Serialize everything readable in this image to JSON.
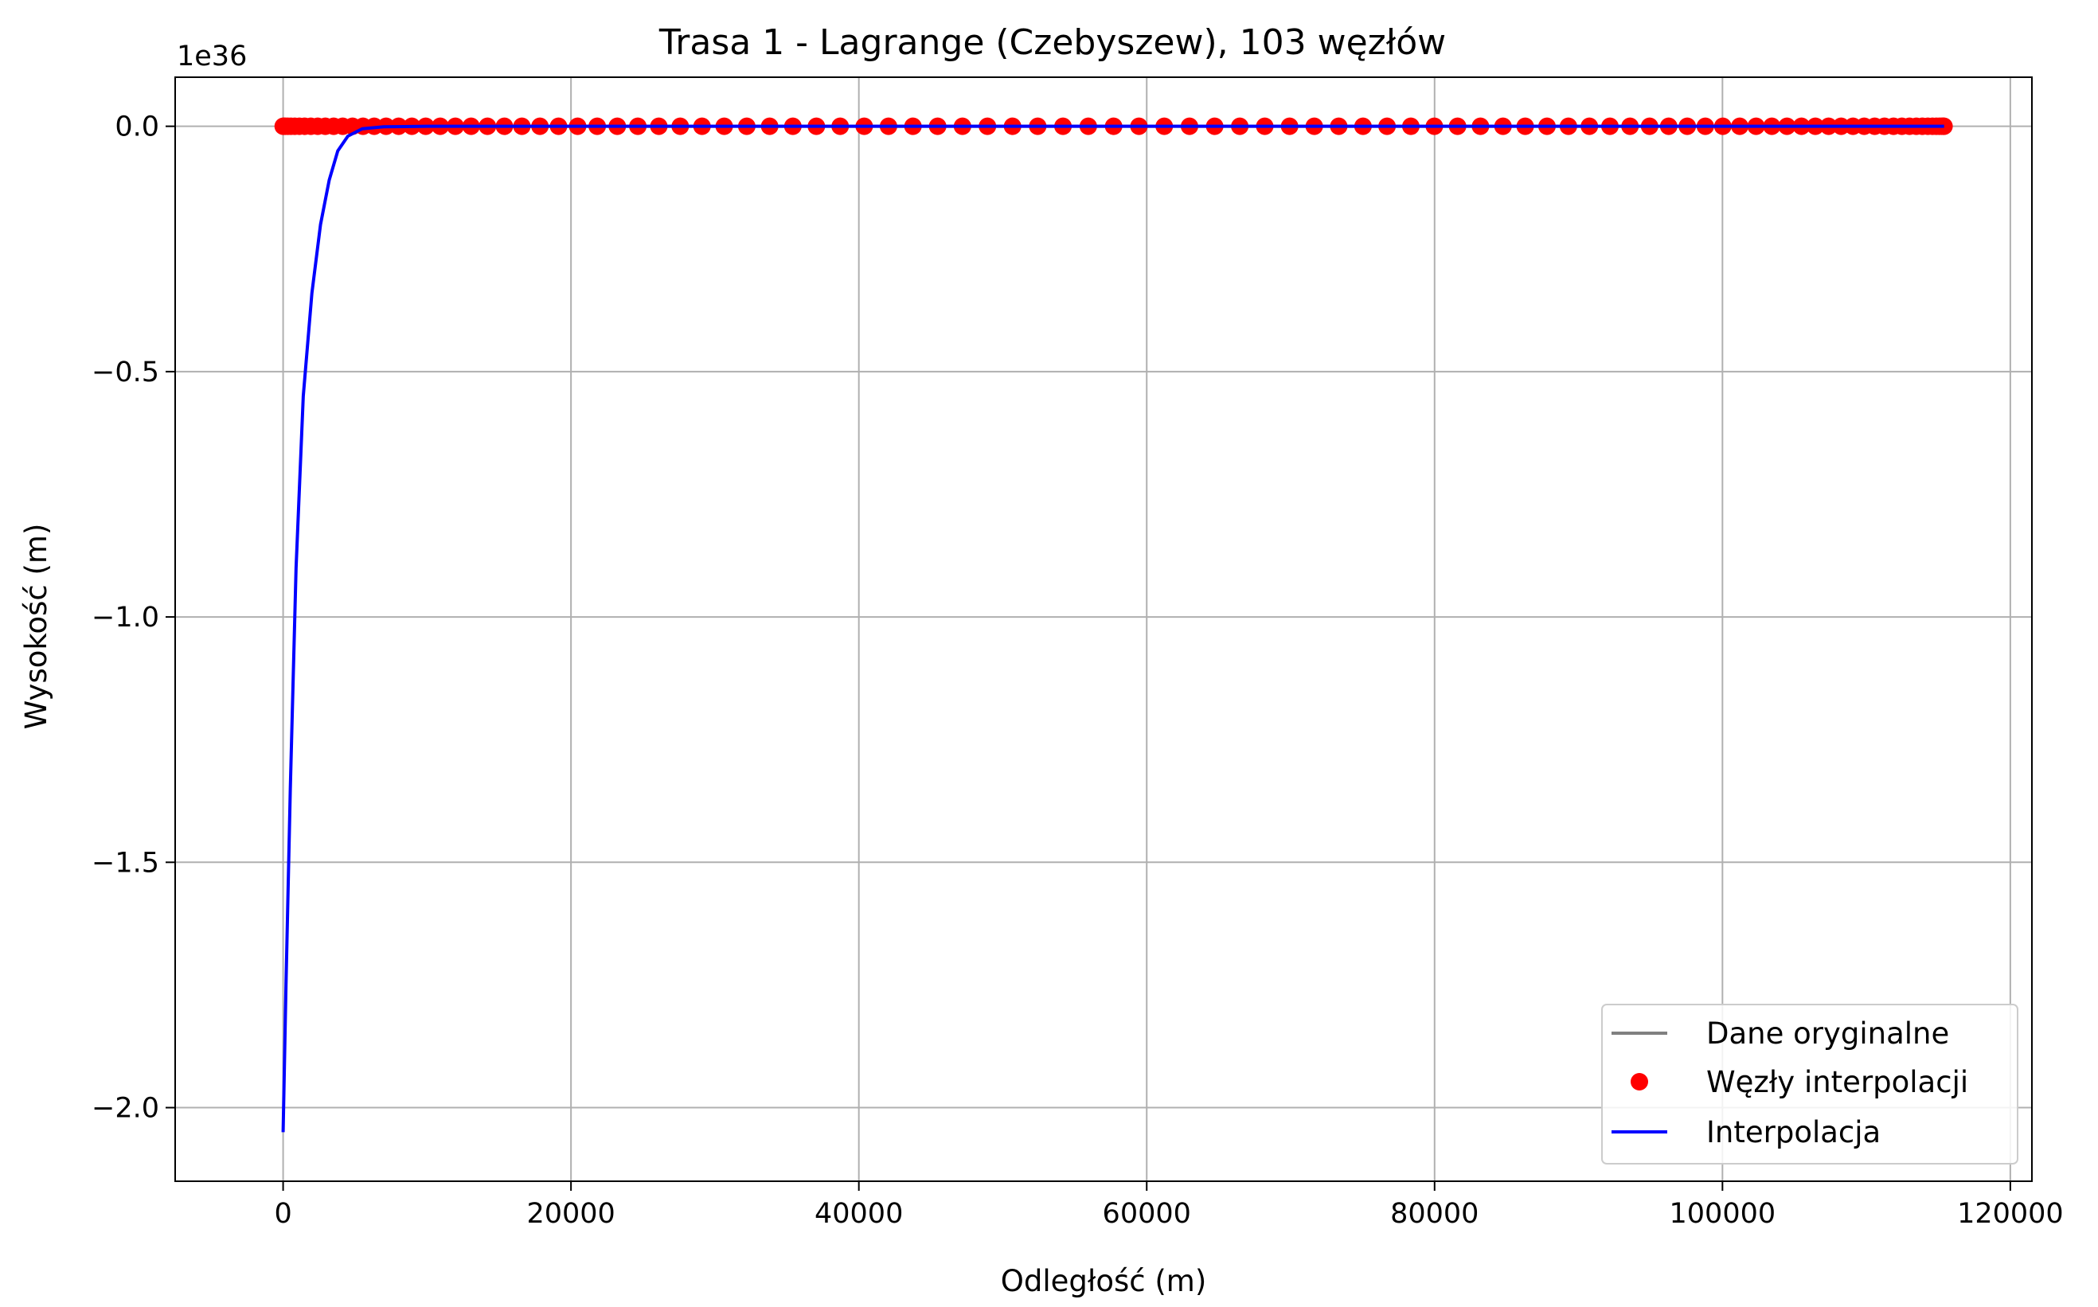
{
  "chart_data": {
    "type": "line",
    "title": "Trasa 1 - Lagrange (Czebyszew), 103 węzłów",
    "xlabel": "Odległość (m)",
    "ylabel": "Wysokość (m)",
    "y_offset_label": "1e36",
    "xlim": [
      -7500,
      121500
    ],
    "ylim": [
      -2.15,
      0.1
    ],
    "y_scale_exponent": 36,
    "grid": true,
    "legend_position": "lower right",
    "x_ticks": [
      0,
      20000,
      40000,
      60000,
      80000,
      100000,
      120000
    ],
    "x_tick_labels": [
      "0",
      "20000",
      "40000",
      "60000",
      "80000",
      "100000",
      "120000"
    ],
    "y_ticks": [
      0.0,
      -0.5,
      -1.0,
      -1.5,
      -2.0
    ],
    "y_tick_labels": [
      "0.0",
      "−0.5",
      "−1.0",
      "−1.5",
      "−2.0"
    ],
    "x_range_nodes": [
      0,
      115400
    ],
    "node_count": 103,
    "series": [
      {
        "name": "Dane oryginalne",
        "kind": "line",
        "color": "#808080",
        "x": [
          0,
          115400
        ],
        "y": [
          0,
          0
        ]
      },
      {
        "name": "Węzły interpolacji",
        "kind": "markers",
        "color": "#ff0000",
        "y_value": 0
      },
      {
        "name": "Interpolacja",
        "kind": "line",
        "color": "#0000ff",
        "x": [
          0,
          200,
          500,
          900,
          1400,
          2000,
          2600,
          3200,
          3800,
          4500,
          5500,
          7000,
          10000,
          20000,
          40000,
          60000,
          80000,
          100000,
          115400
        ],
        "y": [
          -2.05,
          -1.75,
          -1.35,
          -0.9,
          -0.55,
          -0.34,
          -0.2,
          -0.11,
          -0.05,
          -0.02,
          -0.005,
          -0.001,
          0,
          0,
          0,
          0,
          0,
          0,
          0
        ]
      }
    ]
  }
}
